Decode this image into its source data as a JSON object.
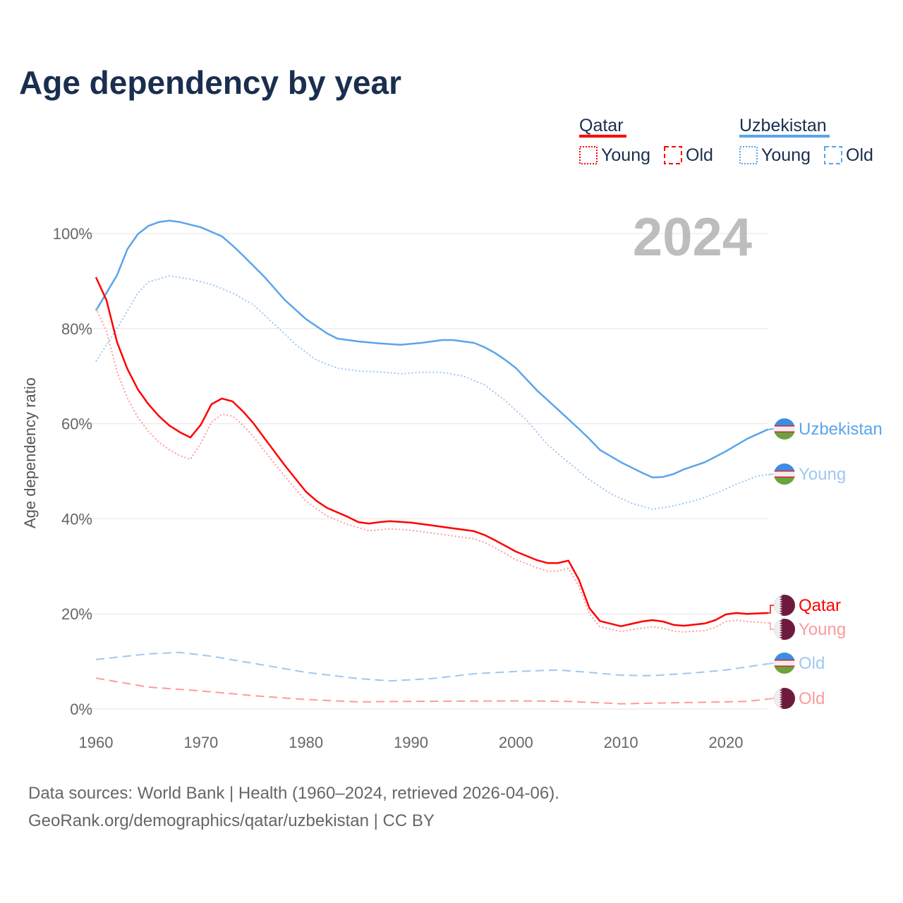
{
  "chart_data": {
    "type": "line",
    "title": "Age dependency by year",
    "xlabel": "",
    "ylabel": "Age dependency ratio",
    "xlim": [
      1960,
      2024
    ],
    "ylim": [
      0,
      100
    ],
    "x_ticks": [
      "1960",
      "1970",
      "1980",
      "1990",
      "2000",
      "2010",
      "2020"
    ],
    "y_ticks": [
      "0%",
      "20%",
      "40%",
      "60%",
      "80%",
      "100%"
    ],
    "y_tick_values": [
      0,
      20,
      40,
      60,
      80,
      100
    ],
    "x_tick_values": [
      1960,
      1970,
      1980,
      1990,
      2000,
      2010,
      2020
    ],
    "grid": true,
    "current_year_label": "2024",
    "legend": {
      "placement": "top-right",
      "groups": [
        {
          "country": "Qatar",
          "items": [
            "Young",
            "Old"
          ]
        },
        {
          "country": "Uzbekistan",
          "items": [
            "Young",
            "Old"
          ]
        }
      ]
    },
    "series": [
      {
        "name": "Uzbekistan",
        "country": "Uzbekistan",
        "end_label": "Uzbekistan",
        "color": "#5ba4ea",
        "style": "solid",
        "x": [
          1960,
          1962,
          1963,
          1964,
          1965,
          1966,
          1967,
          1968,
          1970,
          1972,
          1973,
          1974,
          1976,
          1978,
          1980,
          1982,
          1983,
          1985,
          1987,
          1989,
          1991,
          1993,
          1994,
          1996,
          1997,
          1998,
          1999,
          2000,
          2002,
          2004,
          2006,
          2007,
          2008,
          2010,
          2012,
          2013,
          2014,
          2015,
          2016,
          2018,
          2020,
          2022,
          2024
        ],
        "y": [
          83.8,
          91.2,
          96.7,
          99.9,
          101.6,
          102.4,
          102.7,
          102.4,
          101.3,
          99.4,
          97.5,
          95.4,
          91,
          86,
          82,
          79,
          77.9,
          77.3,
          76.9,
          76.6,
          77,
          77.6,
          77.6,
          77,
          76.1,
          74.9,
          73.4,
          71.7,
          67,
          63,
          58.9,
          56.8,
          54.5,
          51.9,
          49.7,
          48.7,
          48.8,
          49.4,
          50.4,
          51.9,
          54.2,
          56.8,
          58.8
        ]
      },
      {
        "name": "Uzbekistan Young",
        "country": "Uzbekistan",
        "end_label": "Young",
        "color": "#a0c8f0",
        "style": "dotted",
        "x": [
          1960,
          1962,
          1964,
          1965,
          1967,
          1969,
          1971,
          1973,
          1975,
          1977,
          1979,
          1981,
          1983,
          1985,
          1987,
          1989,
          1991,
          1993,
          1995,
          1997,
          1999,
          2001,
          2003,
          2005,
          2007,
          2009,
          2011,
          2013,
          2015,
          2017,
          2019,
          2021,
          2023,
          2024
        ],
        "y": [
          73.1,
          80,
          87.5,
          89.8,
          91.1,
          90.4,
          89.3,
          87.5,
          85,
          80.9,
          76.7,
          73.4,
          71.7,
          71.1,
          70.9,
          70.5,
          70.8,
          70.8,
          70,
          68.2,
          64.8,
          60.8,
          55.6,
          51.9,
          48.2,
          45.3,
          43.3,
          42,
          42.7,
          43.8,
          45.3,
          47.3,
          49,
          49.3
        ]
      },
      {
        "name": "Qatar",
        "country": "Qatar",
        "end_label": "Qatar",
        "color": "#ff0000",
        "style": "solid",
        "x": [
          1960,
          1961,
          1962,
          1963,
          1964,
          1965,
          1966,
          1967,
          1968,
          1969,
          1970,
          1971,
          1972,
          1973,
          1974,
          1975,
          1976,
          1978,
          1980,
          1981,
          1982,
          1984,
          1985,
          1986,
          1987,
          1988,
          1990,
          1992,
          1994,
          1996,
          1997,
          1998,
          2000,
          2002,
          2003,
          2004,
          2005,
          2006,
          2007,
          2008,
          2010,
          2012,
          2013,
          2014,
          2015,
          2016,
          2018,
          2019,
          2020,
          2021,
          2022,
          2024
        ],
        "y": [
          90.8,
          86,
          77.2,
          71.5,
          67.2,
          64.1,
          61.6,
          59.6,
          58.2,
          57.1,
          59.8,
          64.1,
          65.3,
          64.7,
          62.6,
          60.1,
          57.1,
          51.2,
          45.7,
          43.8,
          42.3,
          40.4,
          39.3,
          39,
          39.3,
          39.5,
          39.2,
          38.6,
          38,
          37.4,
          36.6,
          35.5,
          33.1,
          31.3,
          30.7,
          30.7,
          31.2,
          27.2,
          21.2,
          18.5,
          17.4,
          18.4,
          18.7,
          18.4,
          17.7,
          17.5,
          18,
          18.7,
          19.9,
          20.2,
          20,
          20.2
        ]
      },
      {
        "name": "Qatar Young",
        "country": "Qatar",
        "end_label": "Young",
        "color": "#ff9a9a",
        "style": "dotted",
        "x": [
          1960,
          1961,
          1962,
          1963,
          1964,
          1965,
          1966,
          1967,
          1968,
          1969,
          1970,
          1971,
          1972,
          1973,
          1974,
          1975,
          1976,
          1978,
          1980,
          1982,
          1984,
          1986,
          1988,
          1990,
          1992,
          1994,
          1996,
          1997,
          1998,
          2000,
          2002,
          2003,
          2004,
          2005,
          2006,
          2007,
          2008,
          2010,
          2012,
          2013,
          2014,
          2015,
          2016,
          2018,
          2019,
          2020,
          2021,
          2022,
          2024
        ],
        "y": [
          84.3,
          79.5,
          71,
          65.4,
          61.3,
          58.4,
          56.1,
          54.5,
          53.3,
          52.5,
          55.9,
          60.3,
          62,
          61.6,
          59.7,
          57.3,
          54.4,
          48.9,
          43.7,
          40.6,
          38.8,
          37.5,
          37.9,
          37.6,
          37,
          36.4,
          35.8,
          35,
          33.9,
          31.4,
          29.7,
          29,
          29,
          29.6,
          25.8,
          20,
          17.3,
          16.3,
          17,
          17.3,
          17,
          16.4,
          16.2,
          16.5,
          17.2,
          18.4,
          18.7,
          18.4,
          18.1
        ]
      },
      {
        "name": "Uzbekistan Old",
        "country": "Uzbekistan",
        "end_label": "Old",
        "color": "#a0c8f0",
        "style": "dashed",
        "x": [
          1960,
          1965,
          1968,
          1971,
          1975,
          1980,
          1985,
          1988,
          1992,
          1996,
          2000,
          2004,
          2007,
          2010,
          2013,
          2017,
          2020,
          2024
        ],
        "y": [
          10.4,
          11.6,
          11.9,
          11.1,
          9.6,
          7.7,
          6.4,
          5.9,
          6.4,
          7.4,
          7.9,
          8.2,
          7.7,
          7.1,
          7,
          7.6,
          8.2,
          9.5
        ]
      },
      {
        "name": "Qatar Old",
        "country": "Qatar",
        "end_label": "Old",
        "color": "#ff9a9a",
        "style": "dashed",
        "x": [
          1960,
          1965,
          1970,
          1975,
          1980,
          1985,
          1990,
          2000,
          2005,
          2010,
          2015,
          2020,
          2022,
          2024
        ],
        "y": [
          6.5,
          4.6,
          3.8,
          2.8,
          2,
          1.5,
          1.6,
          1.7,
          1.6,
          1.1,
          1.3,
          1.5,
          1.6,
          2.1
        ]
      }
    ]
  },
  "legend": {
    "qatar": {
      "label": "Qatar",
      "young": "Young",
      "old": "Old",
      "color": "#ff0000"
    },
    "uzbekistan": {
      "label": "Uzbekistan",
      "young": "Young",
      "old": "Old",
      "color": "#5ba4ea"
    }
  },
  "source": {
    "line1": "Data sources: World Bank | Health (1960–2024, retrieved 2026-04-06).",
    "line2": "GeoRank.org/demographics/qatar/uzbekistan | CC BY"
  }
}
